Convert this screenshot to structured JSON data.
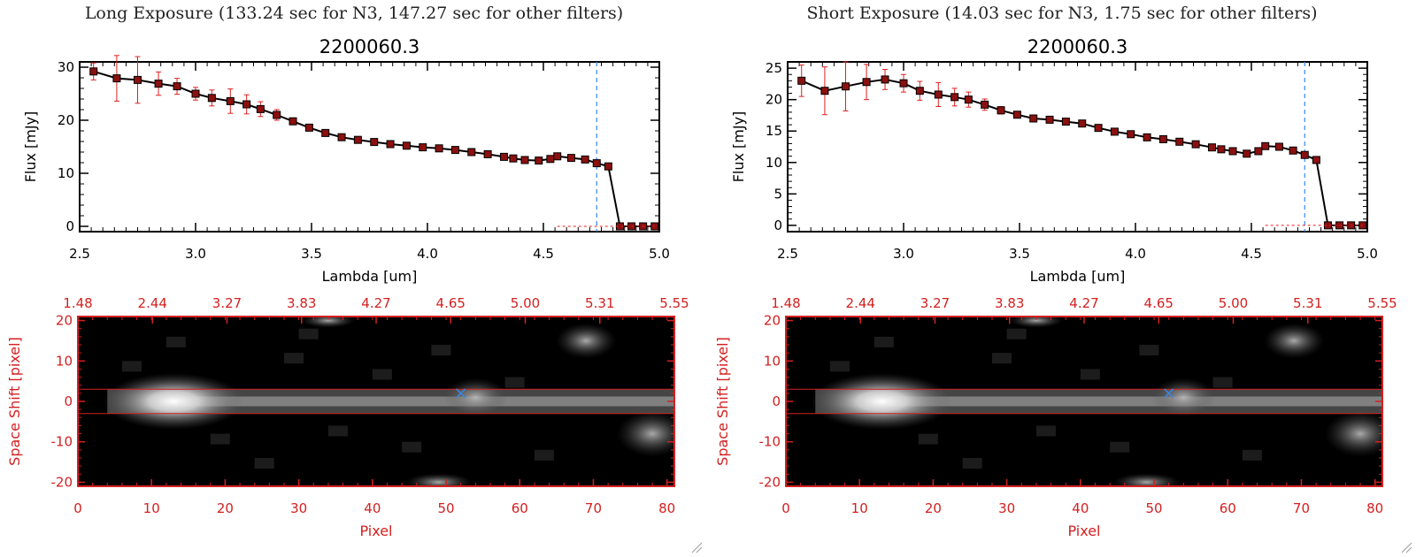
{
  "panels": [
    {
      "title": "Long Exposure (133.24 sec for N3, 147.27 sec for other filters)",
      "spectrum_title": "2200060.3",
      "image_xlabel": "Pixel",
      "image_ylabel": "Space Shift [pixel]"
    },
    {
      "title": "Short Exposure (14.03 sec for N3, 1.75 sec for other filters)",
      "spectrum_title": "2200060.3",
      "image_xlabel": "Pixel",
      "image_ylabel": "Space Shift [pixel]"
    }
  ],
  "colors": {
    "axis_red": "#d42020",
    "points": "#8b1010",
    "line": "#000000",
    "errorbar": "#e02020",
    "cutoff": "#3a86e8"
  },
  "chart_data": [
    {
      "type": "line",
      "title": "2200060.3",
      "xlabel": "Lambda [um]",
      "ylabel": "Flux [mJy]",
      "xlim": [
        2.5,
        5.0
      ],
      "ylim": [
        -1,
        31
      ],
      "xticks": [
        "2.5",
        "3.0",
        "3.5",
        "4.0",
        "4.5",
        "5.0"
      ],
      "yticks": [
        "0",
        "10",
        "20",
        "30"
      ],
      "cutoff_x": 4.73,
      "x": [
        2.56,
        2.66,
        2.75,
        2.84,
        2.92,
        3.0,
        3.07,
        3.15,
        3.22,
        3.28,
        3.35,
        3.42,
        3.49,
        3.56,
        3.63,
        3.7,
        3.77,
        3.84,
        3.91,
        3.98,
        4.05,
        4.12,
        4.19,
        4.26,
        4.33,
        4.37,
        4.42,
        4.48,
        4.53,
        4.56,
        4.62,
        4.68,
        4.73,
        4.78,
        4.83,
        4.88,
        4.93,
        4.98
      ],
      "y": [
        29.2,
        27.9,
        27.6,
        26.9,
        26.4,
        25.0,
        24.2,
        23.6,
        23.0,
        22.1,
        21.0,
        19.8,
        18.6,
        17.6,
        16.8,
        16.3,
        15.9,
        15.5,
        15.2,
        14.9,
        14.7,
        14.4,
        14.0,
        13.6,
        13.1,
        12.8,
        12.5,
        12.4,
        12.7,
        13.2,
        12.9,
        12.6,
        11.9,
        11.3,
        0,
        0,
        0,
        0
      ],
      "yerr": [
        1.6,
        4.3,
        4.4,
        2.2,
        1.5,
        1.2,
        1.5,
        2.3,
        1.8,
        1.4,
        1.0,
        0.5,
        0.4,
        0.3,
        0.3,
        0.2,
        0.2,
        0.2,
        0.2,
        0.2,
        0.2,
        0.2,
        0.2,
        0.2,
        0.2,
        0.2,
        0.2,
        0.2,
        0.2,
        0.2,
        0.2,
        0.2,
        0.2,
        0.2,
        0,
        0,
        0,
        0
      ]
    },
    {
      "type": "heatmap",
      "xlabel": "Pixel",
      "ylabel": "Space Shift [pixel]",
      "top_xlabel_ticks": [
        "1.48",
        "2.44",
        "3.27",
        "3.83",
        "4.27",
        "4.65",
        "5.00",
        "5.31",
        "5.55"
      ],
      "xlim": [
        0,
        81
      ],
      "ylim": [
        -21,
        21
      ],
      "xticks": [
        "0",
        "10",
        "20",
        "30",
        "40",
        "50",
        "60",
        "70",
        "80"
      ],
      "yticks": [
        "20",
        "10",
        "0",
        "-10",
        "-20"
      ],
      "aperture_rows": [
        -3,
        3
      ],
      "marker_pixel": [
        52,
        2
      ]
    },
    {
      "type": "line",
      "title": "2200060.3",
      "xlabel": "Lambda [um]",
      "ylabel": "Flux [mJy]",
      "xlim": [
        2.5,
        5.0
      ],
      "ylim": [
        -1,
        26
      ],
      "xticks": [
        "2.5",
        "3.0",
        "3.5",
        "4.0",
        "4.5",
        "5.0"
      ],
      "yticks": [
        "0",
        "5",
        "10",
        "15",
        "20",
        "25"
      ],
      "cutoff_x": 4.73,
      "x": [
        2.56,
        2.66,
        2.75,
        2.84,
        2.92,
        3.0,
        3.07,
        3.15,
        3.22,
        3.28,
        3.35,
        3.42,
        3.49,
        3.56,
        3.63,
        3.7,
        3.77,
        3.84,
        3.91,
        3.98,
        4.05,
        4.12,
        4.19,
        4.26,
        4.33,
        4.37,
        4.42,
        4.48,
        4.53,
        4.56,
        4.62,
        4.68,
        4.73,
        4.78,
        4.83,
        4.88,
        4.93,
        4.98
      ],
      "y": [
        23.0,
        21.4,
        22.1,
        22.8,
        23.2,
        22.6,
        21.4,
        20.8,
        20.4,
        20.0,
        19.2,
        18.3,
        17.6,
        17.0,
        16.8,
        16.5,
        16.2,
        15.5,
        14.9,
        14.5,
        14.0,
        13.7,
        13.3,
        12.9,
        12.4,
        12.1,
        11.8,
        11.4,
        11.8,
        12.6,
        12.5,
        11.9,
        11.2,
        10.4,
        0,
        0,
        0,
        0
      ],
      "yerr": [
        2.5,
        3.8,
        3.9,
        2.8,
        1.6,
        1.4,
        1.5,
        1.9,
        1.4,
        1.2,
        0.9,
        0.6,
        0.4,
        0.3,
        0.3,
        0.2,
        0.2,
        0.2,
        0.2,
        0.2,
        0.2,
        0.2,
        0.2,
        0.2,
        0.2,
        0.2,
        0.2,
        0.2,
        0.2,
        0.2,
        0.2,
        0.2,
        0.2,
        0.2,
        0,
        0,
        0,
        0
      ]
    },
    {
      "type": "heatmap",
      "xlabel": "Pixel",
      "ylabel": "Space Shift [pixel]",
      "top_xlabel_ticks": [
        "1.48",
        "2.44",
        "3.27",
        "3.83",
        "4.27",
        "4.65",
        "5.00",
        "5.31",
        "5.55"
      ],
      "xlim": [
        0,
        81
      ],
      "ylim": [
        -21,
        21
      ],
      "xticks": [
        "0",
        "10",
        "20",
        "30",
        "40",
        "50",
        "60",
        "70",
        "80"
      ],
      "yticks": [
        "20",
        "10",
        "0",
        "-10",
        "-20"
      ],
      "aperture_rows": [
        -3,
        3
      ],
      "marker_pixel": [
        52,
        2
      ]
    }
  ]
}
